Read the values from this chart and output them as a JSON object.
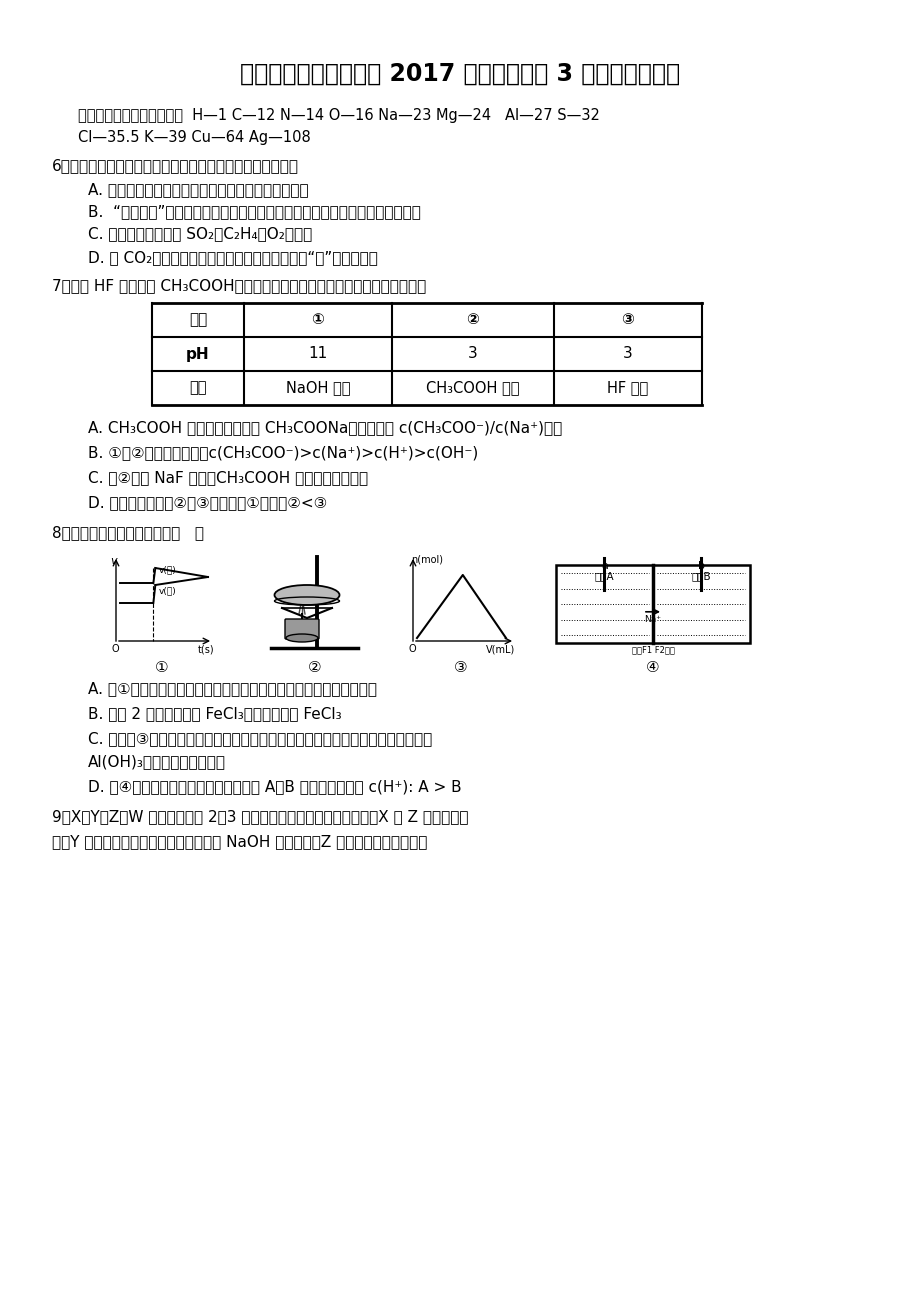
{
  "title": "北京市西城区重点中学 2017 届高三下学期 3 月练习化学试题",
  "bg_color": "#ffffff",
  "atomic_mass_line1": "可能用到的相对原子质量：  H—1 C—12 N—14 O—16 Na—23 Mg—24   Al—27 S—32",
  "atomic_mass_line2": "Cl—35.5 K—39 Cu—64 Ag—108",
  "q6_stem": "6、化学与生产、生活、科技等密切相关，下列说法正确的是",
  "q6_A": "A. 由石油制取乙烯、丙烯等化工原料不涉及化学变化",
  "q6_B": "B.  “神州七号”的防护层中含聚四氟乙烯，制备聚四氟乙烯的单体属于不饱和烃",
  "q6_C": "C. 浓硫酸可用于干燥 SO₂、C₂H₄、O₂等气体",
  "q6_D": "D. 用 CO₂合成可降解的聚碳酸酯塑料，可以实现“碳”的循环利用",
  "q7_stem": "7、已知 HF 酸性强于 CH₃COOH，常温下有下列三种溶液。有关叙述不正确的是",
  "table_headers": [
    "编号",
    "①",
    "②",
    "③"
  ],
  "table_row1": [
    "pH",
    "11",
    "3",
    "3"
  ],
  "table_row2": [
    "溶液",
    "NaOH 溶液",
    "CH₃COOH 溶液",
    "HF 溶液"
  ],
  "q7_A": "A. CH₃COOH 稀溶液中加入少量 CH₃COONa，能使比值 c(CH₃COO⁻)/c(Na⁺)增大",
  "q7_B": "B. ①、②等体积混合后：c(CH₃COO⁻)>c(Na⁺)>c(H⁺)>c(OH⁻)",
  "q7_C": "C. 向②加入 NaF 固体，CH₃COOH 电离平衡正向移动",
  "q7_D": "D. 中和相同体积的②、③，需消耗①的体积②<③",
  "q8_stem": "8、下列各图与表述一致的是（   ）",
  "q8_A": "A. 图①可以表示对某化学平衡体系改变温度后反应速率随时间的变化",
  "q8_B": "B. 用图 2 所示装置蒸发 FeCl₃溶液制备无水 FeCl₃",
  "q8_C": "C. 曲线图③可以表示向一定量的明矾溶液中逐滴滴加一定浓度氢氧化钡溶液时产生",
  "q8_C2": "Al(OH)₃沉淀的物质的量变化",
  "q8_D": "D. 图④电解饱和食盐水的装置中，溶液 A、B 中由水电离出的 c(H⁺): A > B",
  "q9_stem": "9、X、Y、Z、W 是分别位于第 2、3 周期的元素，原子序数依次递增。X 与 Z 位于同一主",
  "q9_line2": "族，Y 元素的单质既能与盐酸反应也能与 NaOH 溶液反应，Z 原子的最外层电子数是"
}
